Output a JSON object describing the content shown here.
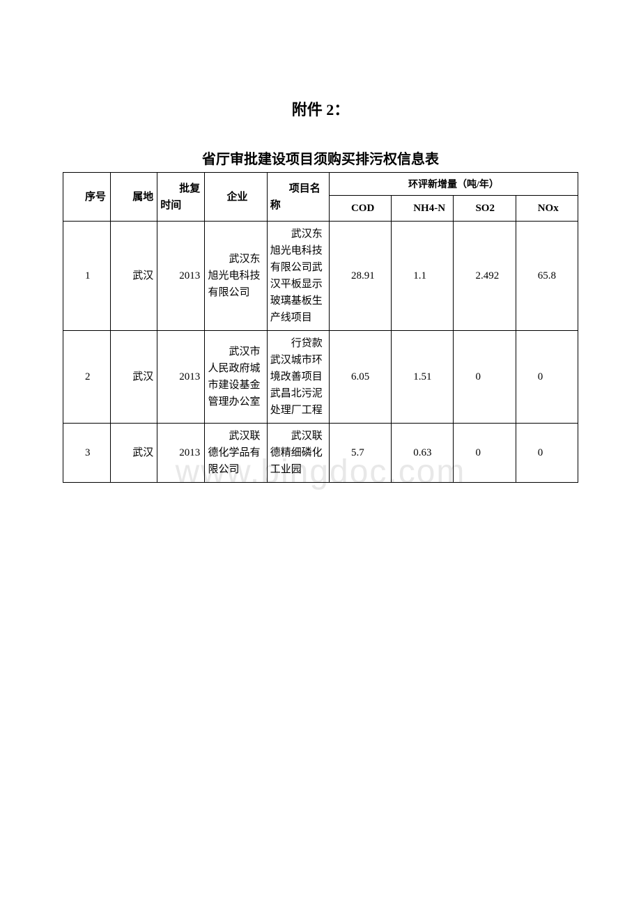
{
  "attachment_label": "附件 2：",
  "table_title": "省厅审批建设项目须购买排污权信息表",
  "watermark_text": "www.bingdoc.com",
  "headers": {
    "seq": "序号",
    "region": "属地",
    "approval_time": "批复时间",
    "enterprise": "企业",
    "project_name": "项目名称",
    "increment_header": "环评新增量（吨/年）",
    "cod": "COD",
    "nh4n": "NH4-N",
    "so2": "SO2",
    "nox": "NOx"
  },
  "rows": [
    {
      "seq": "1",
      "region": "武汉",
      "approval_time": "2013",
      "enterprise": "武汉东旭光电科技有限公司",
      "project_name": "武汉东旭光电科技有限公司武汉平板显示玻璃基板生产线项目",
      "cod": "28.91",
      "nh4n": "1.1",
      "so2": "2.492",
      "nox": "65.8"
    },
    {
      "seq": "2",
      "region": "武汉",
      "approval_time": "2013",
      "enterprise": "武汉市人民政府城市建设基金管理办公室",
      "project_name": "行贷款武汉城市环境改善项目武昌北污泥处理厂工程",
      "cod": "6.05",
      "nh4n": "1.51",
      "so2": "0",
      "nox": "0"
    },
    {
      "seq": "3",
      "region": "武汉",
      "approval_time": "2013",
      "enterprise": "武汉联德化学品有限公司",
      "project_name": "武汉联德精细磷化工业园",
      "cod": "5.7",
      "nh4n": "0.63",
      "so2": "0",
      "nox": "0"
    }
  ]
}
